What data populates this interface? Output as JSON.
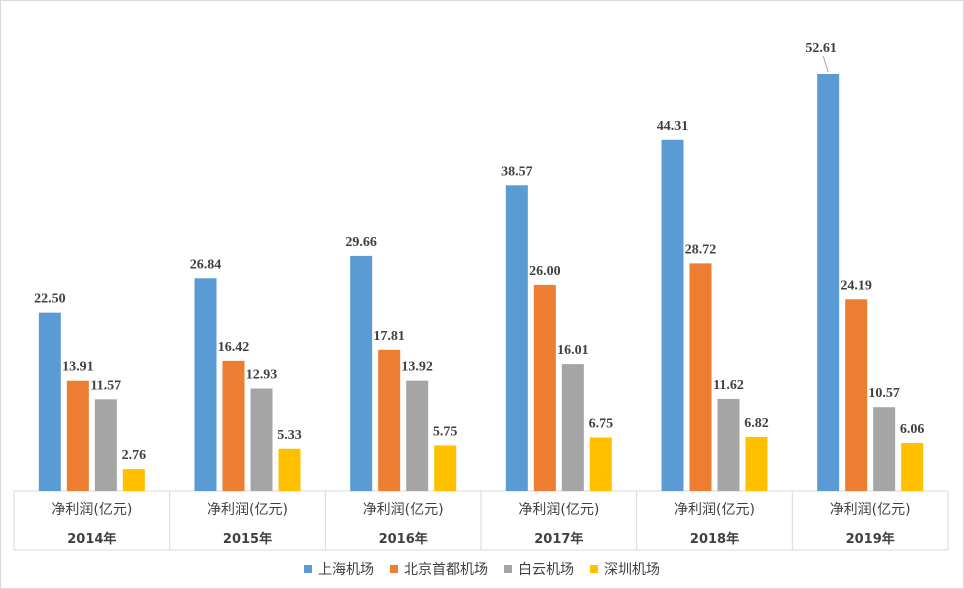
{
  "chart_data": {
    "type": "bar",
    "title": "",
    "xlabel": "",
    "ylabel": "",
    "ylim": [
      0,
      56
    ],
    "grid": false,
    "legend_position": "bottom",
    "category_label": "净利润(亿元)",
    "categories": [
      "2014年",
      "2015年",
      "2016年",
      "2017年",
      "2018年",
      "2019年"
    ],
    "series": [
      {
        "name": "上海机场",
        "color": "#5b9bd5",
        "values": [
          22.5,
          26.84,
          29.66,
          38.57,
          44.31,
          52.61
        ]
      },
      {
        "name": "北京首都机场",
        "color": "#ed7d31",
        "values": [
          13.91,
          16.42,
          17.81,
          26.0,
          28.72,
          24.19
        ]
      },
      {
        "name": "白云机场",
        "color": "#a5a5a5",
        "values": [
          11.57,
          12.93,
          13.92,
          16.01,
          11.62,
          10.57
        ]
      },
      {
        "name": "深圳机场",
        "color": "#ffc000",
        "values": [
          2.76,
          5.33,
          5.75,
          6.75,
          6.82,
          6.06
        ]
      }
    ],
    "value_labels": [
      [
        "22.50",
        "26.84",
        "29.66",
        "38.57",
        "44.31",
        "52.61"
      ],
      [
        "13.91",
        "16.42",
        "17.81",
        "26.00",
        "28.72",
        "24.19"
      ],
      [
        "11.57",
        "12.93",
        "13.92",
        "16.01",
        "11.62",
        "10.57"
      ],
      [
        "2.76",
        "5.33",
        "5.75",
        "6.75",
        "6.82",
        "6.06"
      ]
    ]
  }
}
